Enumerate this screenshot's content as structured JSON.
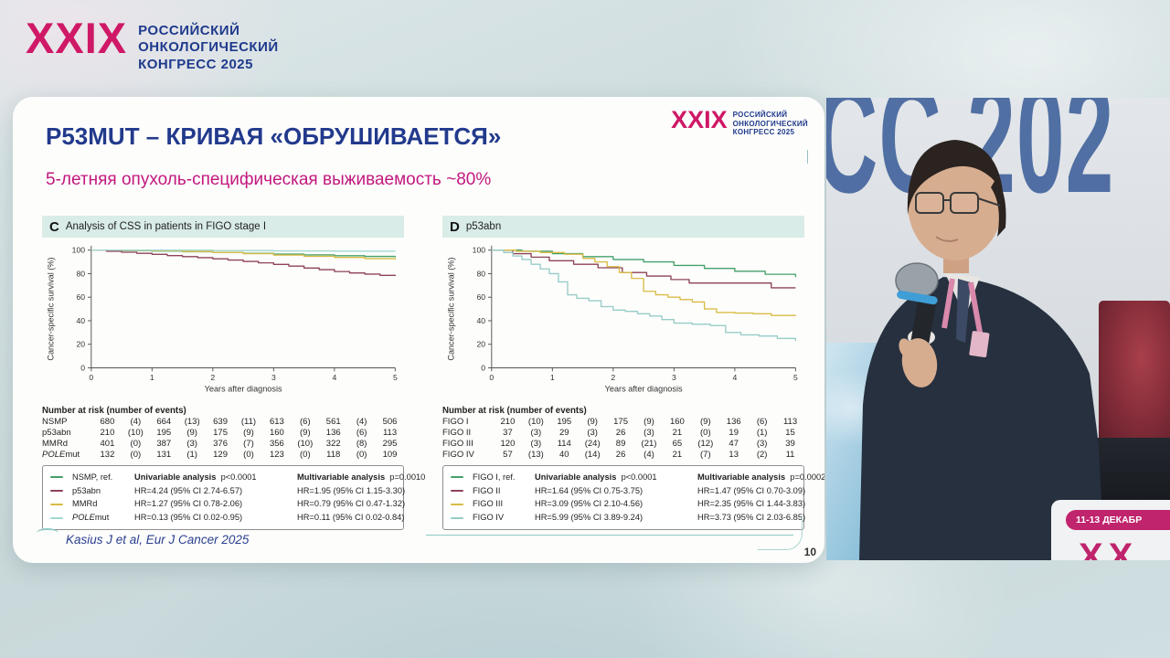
{
  "colors": {
    "accent_magenta": "#cf1866",
    "brand_blue": "#1f3a8c",
    "subtitle_pink": "#c2187e",
    "panel_header_bg": "#d9ece7",
    "teal_line": "#8fcac2",
    "backdrop_text_blue": "#3d5f9a"
  },
  "congress_banner": {
    "numeral": "XXIX",
    "lines": [
      "РОССИЙСКИЙ",
      "ОНКОЛОГИЧЕСКИЙ",
      "КОНГРЕСС 2025"
    ]
  },
  "slide": {
    "title": "P53MUT – КРИВАЯ «ОБРУШИВАЕТСЯ»",
    "subtitle": "5-летняя опухоль-специфическая выживаемость ~80%",
    "logo_numeral": "XXIX",
    "logo_lines": [
      "РОССИЙСКИЙ",
      "ОНКОЛОГИЧЕСКИЙ",
      "КОНГРЕСС 2025"
    ],
    "citation": "Kasius J et al, Eur J Cancer 2025",
    "page_number": "10"
  },
  "chart_data": [
    {
      "type": "line",
      "subtype": "kaplan-meier",
      "panel_letter": "C",
      "panel_title": "Analysis of CSS in patients in FIGO stage I",
      "xlabel": "Years after diagnosis",
      "ylabel": "Cancer-specific survival (%)",
      "xlim": [
        0,
        5
      ],
      "ylim": [
        0,
        100
      ],
      "x_ticks": [
        0,
        1,
        2,
        3,
        4,
        5
      ],
      "y_ticks": [
        0,
        20,
        40,
        60,
        80,
        100
      ],
      "grid": false,
      "series": [
        {
          "name": "NSMP",
          "color": "#44a06a",
          "points": [
            [
              0,
              100
            ],
            [
              0.5,
              99.6
            ],
            [
              1,
              99.2
            ],
            [
              1.5,
              98.6
            ],
            [
              2,
              98
            ],
            [
              2.5,
              97.3
            ],
            [
              3,
              96.6
            ],
            [
              3.5,
              96
            ],
            [
              4,
              95.2
            ],
            [
              4.5,
              94.6
            ],
            [
              5,
              94
            ]
          ]
        },
        {
          "name": "p53abn",
          "color": "#8d4258",
          "points": [
            [
              0,
              100
            ],
            [
              0.25,
              99
            ],
            [
              0.5,
              98.2
            ],
            [
              0.75,
              97.3
            ],
            [
              1,
              96.4
            ],
            [
              1.25,
              95.4
            ],
            [
              1.5,
              94.5
            ],
            [
              1.75,
              93.6
            ],
            [
              2,
              92.6
            ],
            [
              2.25,
              91.6
            ],
            [
              2.5,
              90.4
            ],
            [
              2.75,
              89.2
            ],
            [
              3,
              87.8
            ],
            [
              3.25,
              86.4
            ],
            [
              3.5,
              84.8
            ],
            [
              3.75,
              83.4
            ],
            [
              4,
              81.8
            ],
            [
              4.25,
              80.6
            ],
            [
              4.5,
              79.6
            ],
            [
              4.75,
              78.6
            ],
            [
              5,
              78
            ]
          ]
        },
        {
          "name": "MMRd",
          "color": "#d9bc45",
          "points": [
            [
              0,
              100
            ],
            [
              0.5,
              99.8
            ],
            [
              1,
              99.5
            ],
            [
              1.5,
              98.8
            ],
            [
              2,
              98
            ],
            [
              2.5,
              97
            ],
            [
              3,
              95.8
            ],
            [
              3.5,
              94.8
            ],
            [
              4,
              93.8
            ],
            [
              4.5,
              92.8
            ],
            [
              5,
              92
            ]
          ]
        },
        {
          "name": "POLEmut",
          "color": "#a2d8d0",
          "points": [
            [
              0,
              100
            ],
            [
              1,
              100
            ],
            [
              2,
              99.6
            ],
            [
              3,
              99.3
            ],
            [
              4,
              99.1
            ],
            [
              5,
              99
            ]
          ]
        }
      ],
      "number_at_risk": {
        "header": "Number at risk (number of events)",
        "rows": [
          {
            "label": "NSMP",
            "values": [
              "680",
              "(4)",
              "664",
              "(13)",
              "639",
              "(11)",
              "613",
              "(6)",
              "561",
              "(4)",
              "506"
            ]
          },
          {
            "label": "p53abn",
            "values": [
              "210",
              "(10)",
              "195",
              "(9)",
              "175",
              "(9)",
              "160",
              "(9)",
              "136",
              "(6)",
              "113"
            ]
          },
          {
            "label": "MMRd",
            "values": [
              "401",
              "(0)",
              "387",
              "(3)",
              "376",
              "(7)",
              "356",
              "(10)",
              "322",
              "(8)",
              "295"
            ]
          },
          {
            "label": "POLEmut",
            "values": [
              "132",
              "(0)",
              "131",
              "(1)",
              "129",
              "(0)",
              "123",
              "(0)",
              "118",
              "(0)",
              "109"
            ]
          }
        ]
      },
      "legend": {
        "ref_label": "NSMP, ref.",
        "uni_header": "Univariable analysis",
        "uni_p": "p<0.0001",
        "multi_header": "Multivariable analysis",
        "multi_p": "p=0.0010",
        "rows": [
          {
            "label": "p53abn",
            "uni": "HR=4.24 (95% CI 2.74-6.57)",
            "multi": "HR=1.95 (95% CI 1.15-3.30)"
          },
          {
            "label": "MMRd",
            "uni": "HR=1.27 (95% CI 0.78-2.06)",
            "multi": "HR=0.79 (95% CI 0.47-1.32)"
          },
          {
            "label": "POLEmut",
            "uni": "HR=0.13 (95% CI 0.02-0.95)",
            "multi": "HR=0.11 (95% CI 0.02-0.84)"
          }
        ]
      }
    },
    {
      "type": "line",
      "subtype": "kaplan-meier",
      "panel_letter": "D",
      "panel_title": "p53abn",
      "xlabel": "Years after diagnosis",
      "ylabel": "Cancer-specific survival (%)",
      "xlim": [
        0,
        5
      ],
      "ylim": [
        0,
        100
      ],
      "x_ticks": [
        0,
        1,
        2,
        3,
        4,
        5
      ],
      "y_ticks": [
        0,
        20,
        40,
        60,
        80,
        100
      ],
      "grid": false,
      "series": [
        {
          "name": "FIGO I",
          "color": "#44a06a",
          "points": [
            [
              0,
              100
            ],
            [
              0.5,
              99
            ],
            [
              1,
              97
            ],
            [
              1.5,
              94.5
            ],
            [
              2,
              92
            ],
            [
              2.5,
              90
            ],
            [
              3,
              87
            ],
            [
              3.5,
              84.5
            ],
            [
              4,
              82
            ],
            [
              4.5,
              79.5
            ],
            [
              5,
              77
            ]
          ]
        },
        {
          "name": "FIGO II",
          "color": "#8d4258",
          "points": [
            [
              0,
              100
            ],
            [
              0.35,
              97
            ],
            [
              0.65,
              94
            ],
            [
              0.95,
              91
            ],
            [
              1.35,
              88
            ],
            [
              1.75,
              85
            ],
            [
              2.15,
              81
            ],
            [
              2.55,
              78
            ],
            [
              2.95,
              75
            ],
            [
              3.25,
              72
            ],
            [
              4.6,
              68
            ],
            [
              5,
              68
            ]
          ]
        },
        {
          "name": "FIGO III",
          "color": "#d9bc45",
          "points": [
            [
              0,
              100
            ],
            [
              0.4,
              99
            ],
            [
              0.8,
              98
            ],
            [
              1.2,
              96.5
            ],
            [
              1.5,
              93
            ],
            [
              1.7,
              90
            ],
            [
              1.9,
              86
            ],
            [
              2.1,
              81
            ],
            [
              2.3,
              76
            ],
            [
              2.5,
              65
            ],
            [
              2.7,
              62
            ],
            [
              2.9,
              60
            ],
            [
              3.1,
              58
            ],
            [
              3.3,
              56
            ],
            [
              3.5,
              50
            ],
            [
              3.7,
              47
            ],
            [
              4,
              46.5
            ],
            [
              4.3,
              46
            ],
            [
              4.6,
              44.5
            ],
            [
              5,
              44
            ]
          ]
        },
        {
          "name": "FIGO IV",
          "color": "#96ccc6",
          "points": [
            [
              0,
              100
            ],
            [
              0.2,
              98
            ],
            [
              0.35,
              95
            ],
            [
              0.5,
              92
            ],
            [
              0.65,
              88
            ],
            [
              0.8,
              84
            ],
            [
              0.95,
              80
            ],
            [
              1.1,
              73
            ],
            [
              1.25,
              62
            ],
            [
              1.4,
              59
            ],
            [
              1.6,
              57
            ],
            [
              1.8,
              52
            ],
            [
              2,
              49
            ],
            [
              2.2,
              48
            ],
            [
              2.4,
              46
            ],
            [
              2.6,
              44
            ],
            [
              2.8,
              41
            ],
            [
              3,
              38
            ],
            [
              3.3,
              37
            ],
            [
              3.6,
              36
            ],
            [
              3.85,
              30
            ],
            [
              4.1,
              28
            ],
            [
              4.4,
              27
            ],
            [
              4.7,
              25
            ],
            [
              5,
              23
            ]
          ]
        }
      ],
      "number_at_risk": {
        "header": "Number at risk (number of events)",
        "rows": [
          {
            "label": "FIGO I",
            "values": [
              "210",
              "(10)",
              "195",
              "(9)",
              "175",
              "(9)",
              "160",
              "(9)",
              "136",
              "(6)",
              "113"
            ]
          },
          {
            "label": "FIGO II",
            "values": [
              "37",
              "(3)",
              "29",
              "(3)",
              "26",
              "(3)",
              "21",
              "(0)",
              "19",
              "(1)",
              "15"
            ]
          },
          {
            "label": "FIGO III",
            "values": [
              "120",
              "(3)",
              "114",
              "(24)",
              "89",
              "(21)",
              "65",
              "(12)",
              "47",
              "(3)",
              "39"
            ]
          },
          {
            "label": "FIGO IV",
            "values": [
              "57",
              "(13)",
              "40",
              "(14)",
              "26",
              "(4)",
              "21",
              "(7)",
              "13",
              "(2)",
              "11"
            ]
          }
        ]
      },
      "legend": {
        "ref_label": "FIGO I, ref.",
        "uni_header": "Univariable analysis",
        "uni_p": "p<0.0001",
        "multi_header": "Multivariable analysis",
        "multi_p": "p=0.0002",
        "rows": [
          {
            "label": "FIGO II",
            "uni": "HR=1.64 (95% CI 0.75-3.75)",
            "multi": "HR=1.47 (95% CI 0.70-3.09)"
          },
          {
            "label": "FIGO III",
            "uni": "HR=3.09 (95% CI 2.10-4.56)",
            "multi": "HR=2.35 (95% CI 1.44-3.83)"
          },
          {
            "label": "FIGO IV",
            "uni": "HR=5.99 (95% CI 3.89-9.24)",
            "multi": "HR=3.73 (95% CI 2.03-6.85)"
          }
        ]
      }
    }
  ],
  "video": {
    "backdrop_text": "CC 202",
    "banner_pill": "11-13 ДЕКАБР",
    "partial_logo": "XX"
  }
}
